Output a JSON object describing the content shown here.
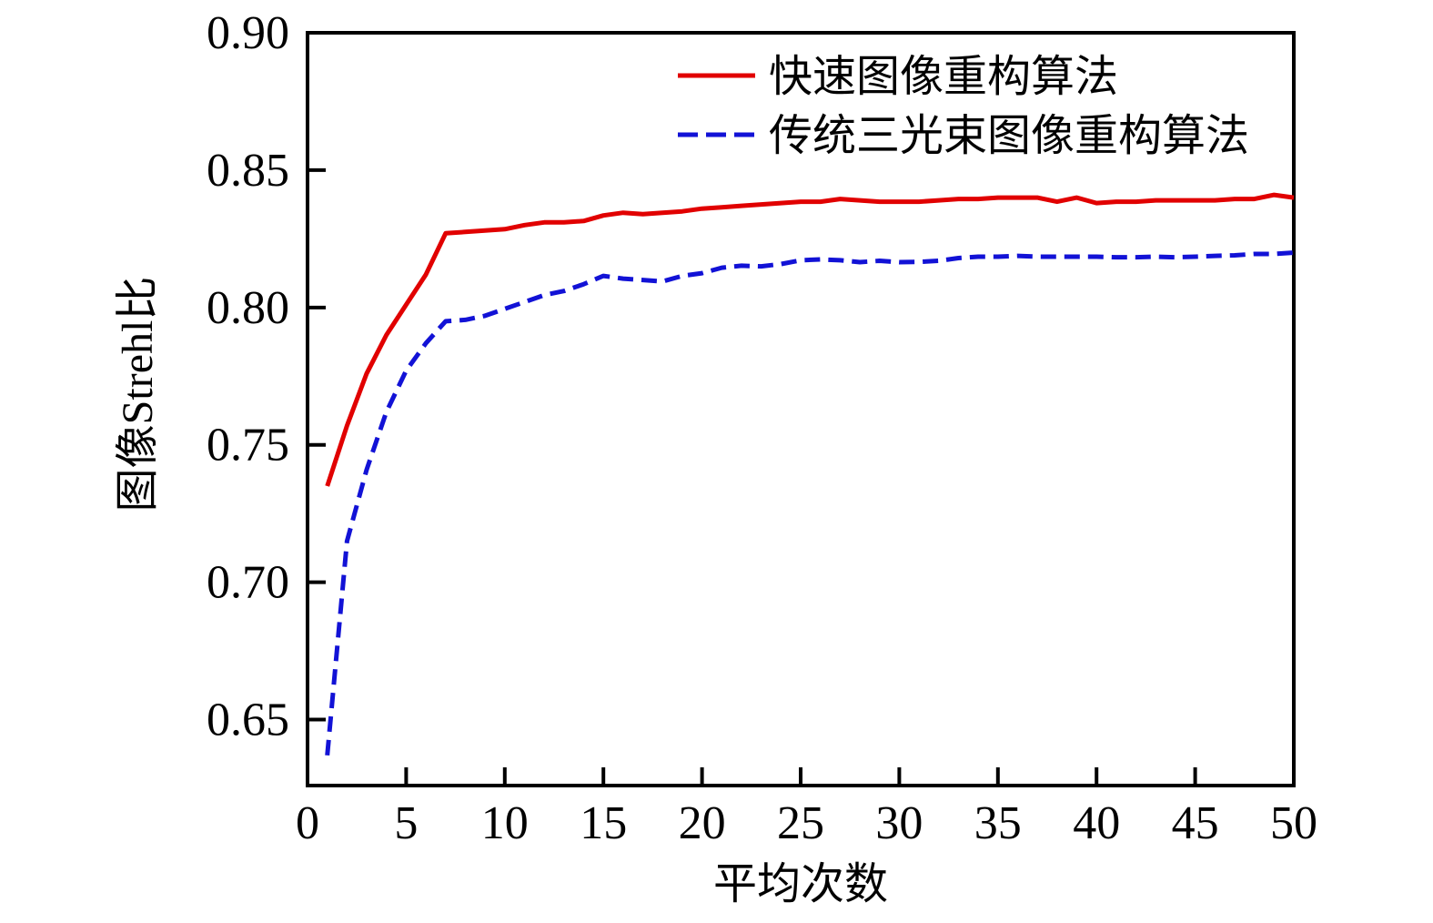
{
  "chart_data": {
    "type": "line",
    "title": "",
    "xlabel": "平均次数",
    "ylabel": "图像Strehl比",
    "xlim": [
      0,
      50
    ],
    "ylim": [
      0.626,
      0.9
    ],
    "grid": false,
    "legend_position": "top-center-inside",
    "frame_color": "#000000",
    "xticks": [
      0,
      5,
      10,
      15,
      20,
      25,
      30,
      35,
      40,
      45,
      50
    ],
    "xtick_labels": [
      "0",
      "5",
      "10",
      "15",
      "20",
      "25",
      "30",
      "35",
      "40",
      "45",
      "50"
    ],
    "yticks": [
      0.65,
      0.7,
      0.75,
      0.8,
      0.85,
      0.9
    ],
    "ytick_labels": [
      "0.65",
      "0.70",
      "0.75",
      "0.80",
      "0.85",
      "0.90"
    ],
    "x": [
      1,
      2,
      3,
      4,
      5,
      6,
      7,
      8,
      9,
      10,
      11,
      12,
      13,
      14,
      15,
      16,
      17,
      18,
      19,
      20,
      21,
      22,
      23,
      24,
      25,
      26,
      27,
      28,
      29,
      30,
      31,
      32,
      33,
      34,
      35,
      36,
      37,
      38,
      39,
      40,
      41,
      42,
      43,
      44,
      45,
      46,
      47,
      48,
      49,
      50
    ],
    "series": [
      {
        "name": "快速图像重构算法",
        "color": "#e10000",
        "style": "solid",
        "values": [
          0.735,
          0.757,
          0.776,
          0.79,
          0.801,
          0.812,
          0.827,
          0.8275,
          0.828,
          0.8285,
          0.83,
          0.831,
          0.831,
          0.8315,
          0.8335,
          0.8345,
          0.834,
          0.8345,
          0.835,
          0.836,
          0.8365,
          0.837,
          0.8375,
          0.838,
          0.8385,
          0.8385,
          0.8395,
          0.839,
          0.8385,
          0.8385,
          0.8385,
          0.839,
          0.8395,
          0.8395,
          0.84,
          0.84,
          0.84,
          0.8385,
          0.84,
          0.838,
          0.8385,
          0.8385,
          0.839,
          0.839,
          0.839,
          0.839,
          0.8395,
          0.8395,
          0.841,
          0.84
        ]
      },
      {
        "name": "传统三光束图像重构算法",
        "color": "#1212d6",
        "style": "dashed",
        "values": [
          0.637,
          0.715,
          0.741,
          0.762,
          0.777,
          0.787,
          0.795,
          0.7955,
          0.797,
          0.7995,
          0.802,
          0.8045,
          0.806,
          0.8085,
          0.8115,
          0.8105,
          0.81,
          0.8095,
          0.8115,
          0.8125,
          0.8145,
          0.8152,
          0.815,
          0.8158,
          0.8172,
          0.8175,
          0.8172,
          0.8165,
          0.817,
          0.8165,
          0.8166,
          0.817,
          0.818,
          0.8185,
          0.8185,
          0.8188,
          0.8185,
          0.8185,
          0.8185,
          0.8185,
          0.8183,
          0.8183,
          0.8185,
          0.8183,
          0.8185,
          0.8188,
          0.819,
          0.8195,
          0.8195,
          0.82
        ]
      }
    ]
  }
}
